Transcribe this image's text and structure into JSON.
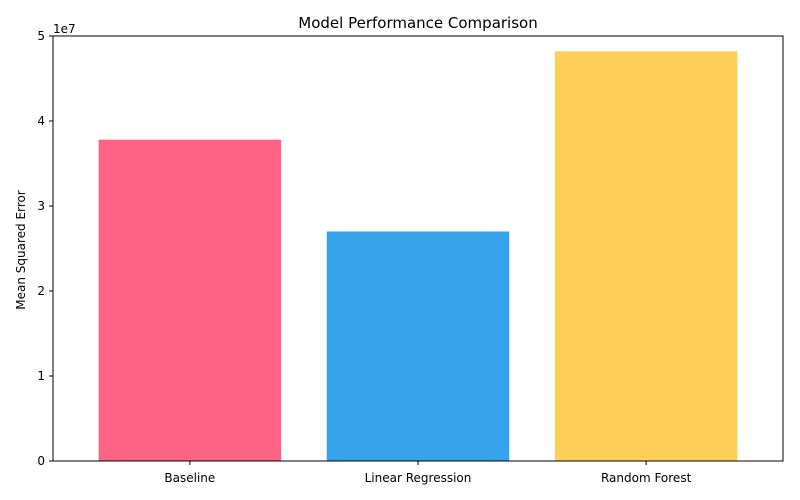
{
  "chart_data": {
    "type": "bar",
    "title": "Model Performance Comparison",
    "xlabel": "",
    "ylabel": "Mean Squared Error",
    "scale_label": "1e7",
    "categories": [
      "Baseline",
      "Linear Regression",
      "Random Forest"
    ],
    "values": [
      37800000,
      27000000,
      48200000
    ],
    "colors": [
      "#FF6384",
      "#36A2EB",
      "#FFCE56"
    ],
    "ylim": [
      0,
      50000000
    ],
    "yticks": [
      0,
      10000000,
      20000000,
      30000000,
      40000000,
      50000000
    ],
    "ytick_labels": [
      "0",
      "1",
      "2",
      "3",
      "4",
      "5"
    ],
    "grid": false,
    "legend": false
  }
}
